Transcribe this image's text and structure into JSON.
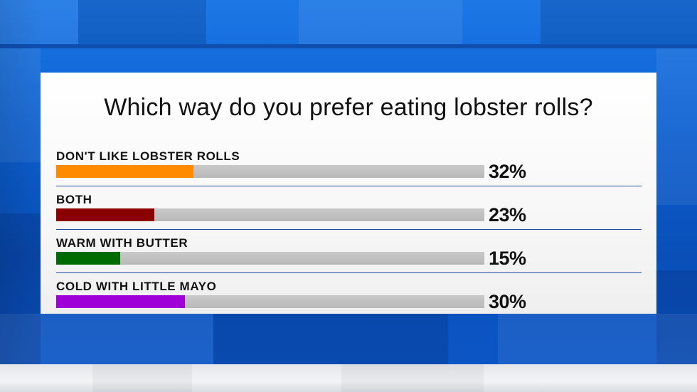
{
  "poll": {
    "question": "Which way do you prefer eating lobster rolls?"
  },
  "chart_data": {
    "type": "bar",
    "title": "Which way do you prefer eating lobster rolls?",
    "categories": [
      "DON'T LIKE LOBSTER ROLLS",
      "BOTH",
      "WARM WITH BUTTER",
      "COLD WITH LITTLE MAYO"
    ],
    "values": [
      32,
      23,
      15,
      30
    ],
    "value_labels": [
      "32%",
      "23%",
      "15%",
      "30%"
    ],
    "colors": [
      "#ff8a00",
      "#8b0000",
      "#006b00",
      "#a000d8"
    ],
    "ylim": [
      0,
      100
    ],
    "orientation": "horizontal",
    "grid": false,
    "legend": "none"
  }
}
